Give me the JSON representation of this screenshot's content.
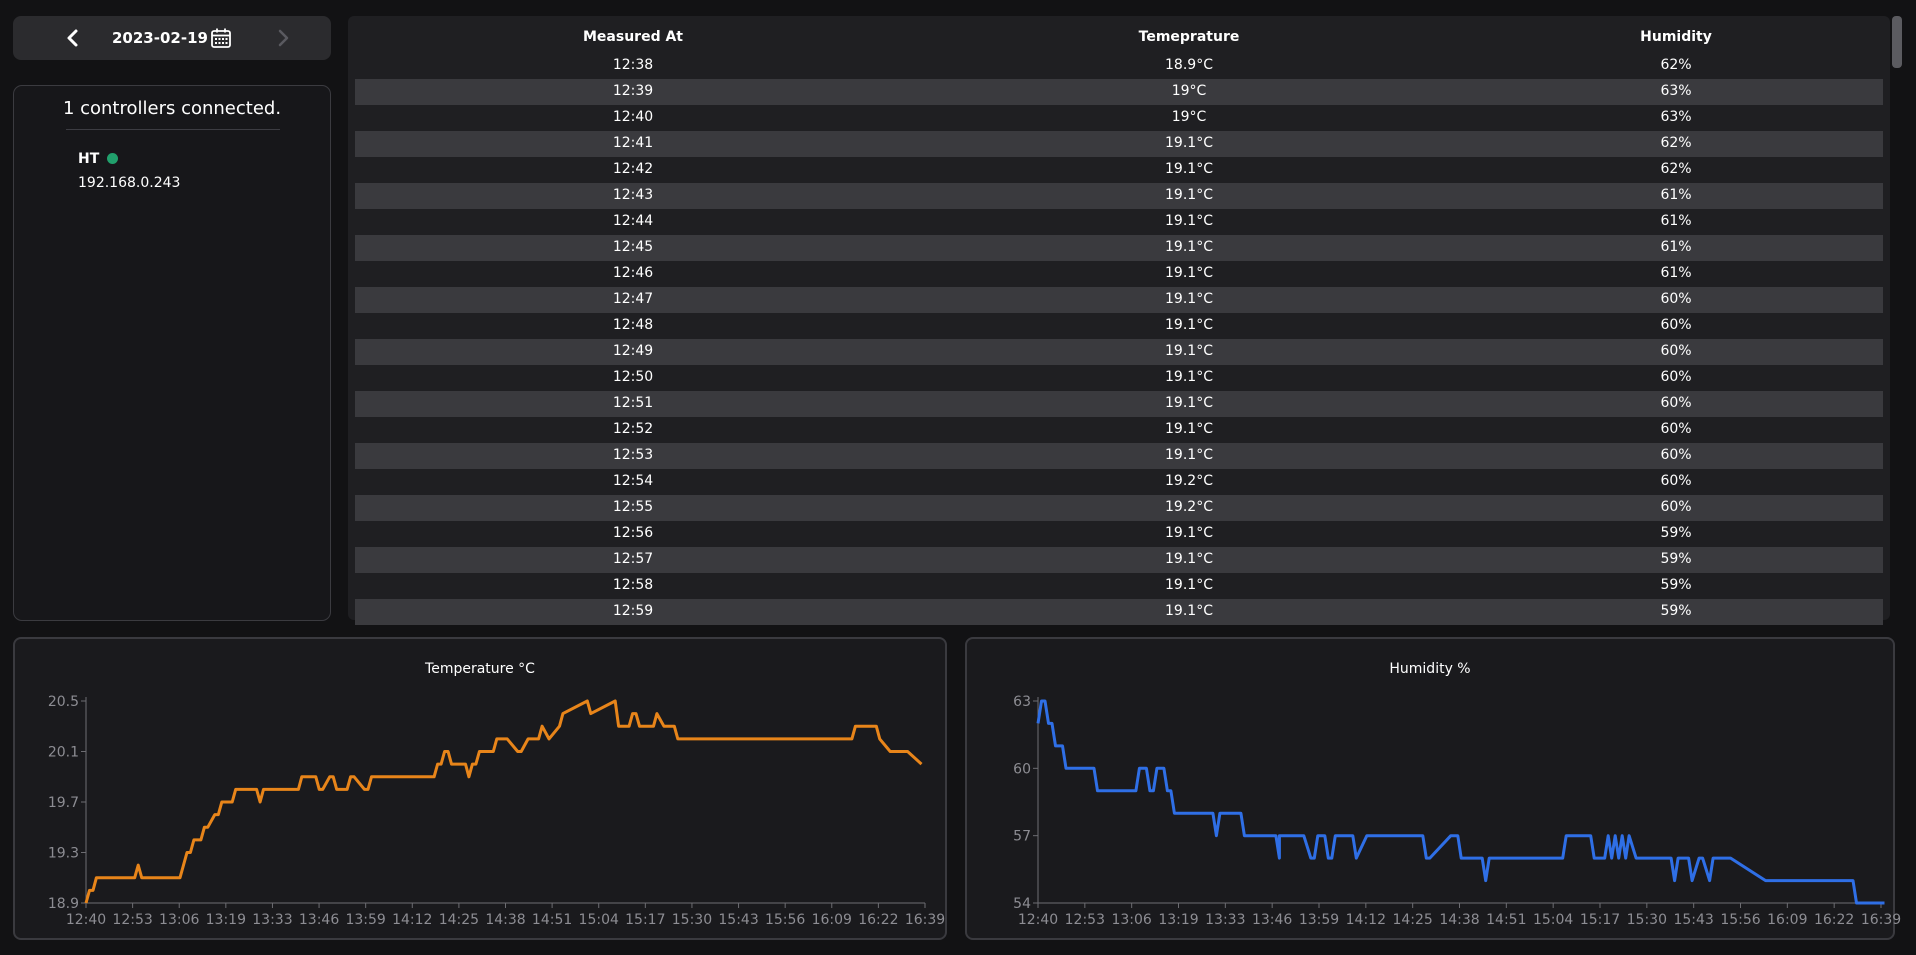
{
  "date_nav": {
    "date": "2023-02-19",
    "prev_icon": "chevron-left-icon",
    "next_icon": "chevron-right-icon",
    "calendar_icon": "calendar-icon"
  },
  "controllers": {
    "title": "1 controllers connected.",
    "items": [
      {
        "name": "HT",
        "ip": "192.168.0.243",
        "status_color": "#21a06c"
      }
    ]
  },
  "table": {
    "headers": [
      "Measured At",
      "Temeprature",
      "Humidity"
    ],
    "rows": [
      [
        "12:38",
        "18.9°C",
        "62%"
      ],
      [
        "12:39",
        "19°C",
        "63%"
      ],
      [
        "12:40",
        "19°C",
        "63%"
      ],
      [
        "12:41",
        "19.1°C",
        "62%"
      ],
      [
        "12:42",
        "19.1°C",
        "62%"
      ],
      [
        "12:43",
        "19.1°C",
        "61%"
      ],
      [
        "12:44",
        "19.1°C",
        "61%"
      ],
      [
        "12:45",
        "19.1°C",
        "61%"
      ],
      [
        "12:46",
        "19.1°C",
        "61%"
      ],
      [
        "12:47",
        "19.1°C",
        "60%"
      ],
      [
        "12:48",
        "19.1°C",
        "60%"
      ],
      [
        "12:49",
        "19.1°C",
        "60%"
      ],
      [
        "12:50",
        "19.1°C",
        "60%"
      ],
      [
        "12:51",
        "19.1°C",
        "60%"
      ],
      [
        "12:52",
        "19.1°C",
        "60%"
      ],
      [
        "12:53",
        "19.1°C",
        "60%"
      ],
      [
        "12:54",
        "19.2°C",
        "60%"
      ],
      [
        "12:55",
        "19.2°C",
        "60%"
      ],
      [
        "12:56",
        "19.1°C",
        "59%"
      ],
      [
        "12:57",
        "19.1°C",
        "59%"
      ],
      [
        "12:58",
        "19.1°C",
        "59%"
      ],
      [
        "12:59",
        "19.1°C",
        "59%"
      ]
    ]
  },
  "chart_data": [
    {
      "type": "line",
      "title": "Temperature °C",
      "color": "#e8851a",
      "x_ticks": [
        "12:40",
        "12:53",
        "13:06",
        "13:19",
        "13:33",
        "13:46",
        "13:59",
        "14:12",
        "14:25",
        "14:38",
        "14:51",
        "15:04",
        "15:17",
        "15:30",
        "15:43",
        "15:56",
        "16:09",
        "16:22",
        "16:39"
      ],
      "y_ticks": [
        18.9,
        19.3,
        19.7,
        20.1,
        20.5
      ],
      "ylim": [
        18.9,
        20.5
      ],
      "x_range_min": [
        0,
        241
      ],
      "x": [
        0,
        1,
        2,
        3,
        14,
        15,
        16,
        27,
        28,
        29,
        30,
        31,
        33,
        34,
        35,
        37,
        38,
        39,
        41,
        42,
        43,
        44,
        49,
        50,
        51,
        60,
        61,
        62,
        63,
        66,
        67,
        68,
        70,
        71,
        72,
        75,
        76,
        77,
        80,
        81,
        82,
        83,
        86,
        87,
        88,
        89,
        91,
        92,
        93,
        95,
        96,
        99,
        100,
        101,
        102,
        103,
        104,
        105,
        109,
        110,
        111,
        112,
        113,
        114,
        117,
        118,
        121,
        124,
        125,
        127,
        130,
        131,
        133,
        136,
        137,
        144,
        145,
        152,
        153,
        154,
        155,
        156,
        157,
        158,
        159,
        162,
        163,
        164,
        166,
        169,
        170,
        178,
        179,
        180,
        183,
        185,
        186,
        191,
        192,
        200,
        208,
        209,
        220,
        221,
        225,
        226,
        227,
        228,
        231,
        232,
        236,
        240
      ],
      "y": [
        18.9,
        19.0,
        19.0,
        19.1,
        19.1,
        19.2,
        19.1,
        19.1,
        19.2,
        19.3,
        19.3,
        19.4,
        19.4,
        19.5,
        19.5,
        19.6,
        19.6,
        19.7,
        19.7,
        19.7,
        19.8,
        19.8,
        19.8,
        19.7,
        19.8,
        19.8,
        19.8,
        19.9,
        19.9,
        19.9,
        19.8,
        19.8,
        19.9,
        19.9,
        19.8,
        19.8,
        19.9,
        19.9,
        19.8,
        19.8,
        19.9,
        19.9,
        19.9,
        19.9,
        19.9,
        19.9,
        19.9,
        19.9,
        19.9,
        19.9,
        19.9,
        19.9,
        19.9,
        20.0,
        20.0,
        20.1,
        20.1,
        20.0,
        20.0,
        19.9,
        20.0,
        20.0,
        20.1,
        20.1,
        20.1,
        20.2,
        20.2,
        20.1,
        20.1,
        20.2,
        20.2,
        20.3,
        20.2,
        20.3,
        20.4,
        20.5,
        20.4,
        20.5,
        20.3,
        20.3,
        20.3,
        20.3,
        20.4,
        20.4,
        20.3,
        20.3,
        20.3,
        20.4,
        20.3,
        20.3,
        20.2,
        20.2,
        20.2,
        20.2,
        20.2,
        20.2,
        20.2,
        20.2,
        20.2,
        20.2,
        20.2,
        20.2,
        20.2,
        20.3,
        20.3,
        20.3,
        20.3,
        20.2,
        20.1,
        20.1,
        20.1,
        20.0
      ]
    },
    {
      "type": "line",
      "title": "Humidity %",
      "color": "#2f6fe6",
      "x_ticks": [
        "12:40",
        "12:53",
        "13:06",
        "13:19",
        "13:33",
        "13:46",
        "13:59",
        "14:12",
        "14:25",
        "14:38",
        "14:51",
        "15:04",
        "15:17",
        "15:30",
        "15:43",
        "15:56",
        "16:09",
        "16:22",
        "16:39"
      ],
      "y_ticks": [
        54,
        57,
        60,
        63
      ],
      "ylim": [
        54,
        63
      ],
      "x_range_min": [
        0,
        241
      ],
      "x": [
        0,
        1,
        2,
        3,
        4,
        5,
        6,
        7,
        8,
        9,
        10,
        11,
        16,
        17,
        28,
        29,
        31,
        32,
        33,
        34,
        36,
        37,
        38,
        39,
        42,
        43,
        50,
        51,
        51,
        52,
        58,
        59,
        60,
        61,
        66,
        67,
        68,
        69,
        69,
        70,
        75,
        76,
        78,
        79,
        80,
        81,
        82,
        83,
        84,
        85,
        86,
        87,
        90,
        91,
        94,
        95,
        110,
        111,
        112,
        118,
        119,
        120,
        121,
        127,
        128,
        129,
        137,
        138,
        139,
        150,
        151,
        152,
        158,
        159,
        160,
        161,
        162,
        163,
        164,
        165,
        166,
        167,
        168,
        169,
        171,
        172,
        181,
        182,
        183,
        184,
        186,
        187,
        189,
        190,
        192,
        193,
        194,
        195,
        198,
        208,
        209,
        210,
        211,
        221,
        222,
        223,
        224,
        226,
        233,
        234,
        242
      ],
      "y": [
        62,
        63,
        63,
        62,
        62,
        61,
        61,
        61,
        60,
        60,
        60,
        60,
        60,
        59,
        59,
        60,
        60,
        59,
        59,
        60,
        60,
        59,
        59,
        58,
        58,
        58,
        58,
        57,
        57,
        58,
        58,
        57,
        57,
        57,
        57,
        57,
        57,
        56,
        57,
        57,
        57,
        57,
        56,
        56,
        57,
        57,
        57,
        56,
        56,
        57,
        57,
        57,
        57,
        56,
        57,
        57,
        57,
        56,
        56,
        57,
        57,
        57,
        56,
        56,
        55,
        56,
        56,
        56,
        56,
        56,
        57,
        57,
        57,
        56,
        56,
        56,
        56,
        57,
        56,
        57,
        56,
        57,
        56,
        57,
        56,
        56,
        56,
        55,
        56,
        56,
        56,
        55,
        56,
        56,
        55,
        56,
        56,
        56,
        56,
        55,
        55,
        55,
        55,
        55,
        55,
        55,
        55,
        55,
        55,
        54,
        54
      ]
    }
  ]
}
